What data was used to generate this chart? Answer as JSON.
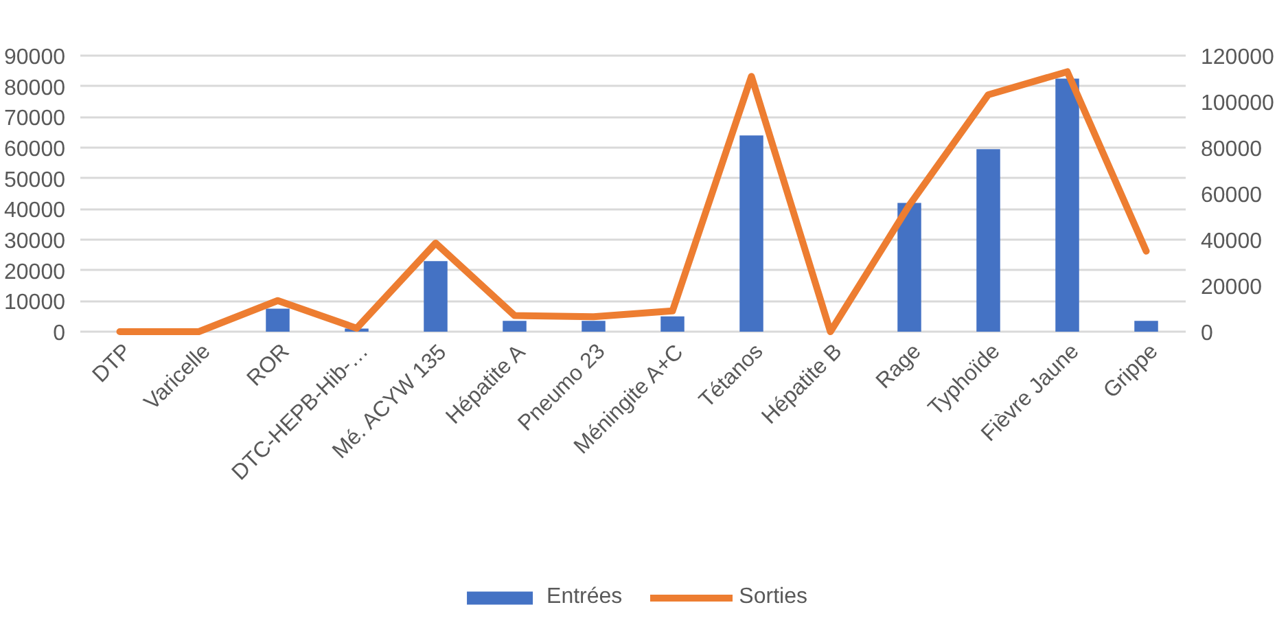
{
  "chart_data": {
    "type": "bar",
    "categories": [
      "DTP",
      "Varicelle",
      "ROR",
      "DTC-HEPB-Hib-…",
      "Mé. ACYW 135",
      "Hépatite A",
      "Pneumo 23",
      "Méningite A+C",
      "Tétanos",
      "Hépatite B",
      "Rage",
      "Typhoïde",
      "Fièvre Jaune",
      "Grippe"
    ],
    "series": [
      {
        "name": "Entrées",
        "color": "#4472c4",
        "values": [
          0,
          0,
          7500,
          1000,
          23000,
          3500,
          3500,
          5000,
          64000,
          0,
          42000,
          59500,
          82500,
          3500
        ]
      },
      {
        "name": "Sorties",
        "color": "#ed7d31",
        "type": "line",
        "axis": "y2",
        "values": [
          0,
          0,
          13500,
          1500,
          38500,
          7000,
          6500,
          9000,
          111000,
          0,
          55000,
          103000,
          113000,
          35000
        ]
      }
    ],
    "ylim": [
      0,
      90000
    ],
    "yticks": [
      0,
      10000,
      20000,
      30000,
      40000,
      50000,
      60000,
      70000,
      80000,
      90000
    ],
    "y2lim": [
      0,
      120000
    ],
    "y2ticks": [
      0,
      20000,
      40000,
      60000,
      80000,
      100000,
      120000
    ],
    "grid": "y",
    "legend": "bottom",
    "marker": "none",
    "line_style": "solid"
  }
}
